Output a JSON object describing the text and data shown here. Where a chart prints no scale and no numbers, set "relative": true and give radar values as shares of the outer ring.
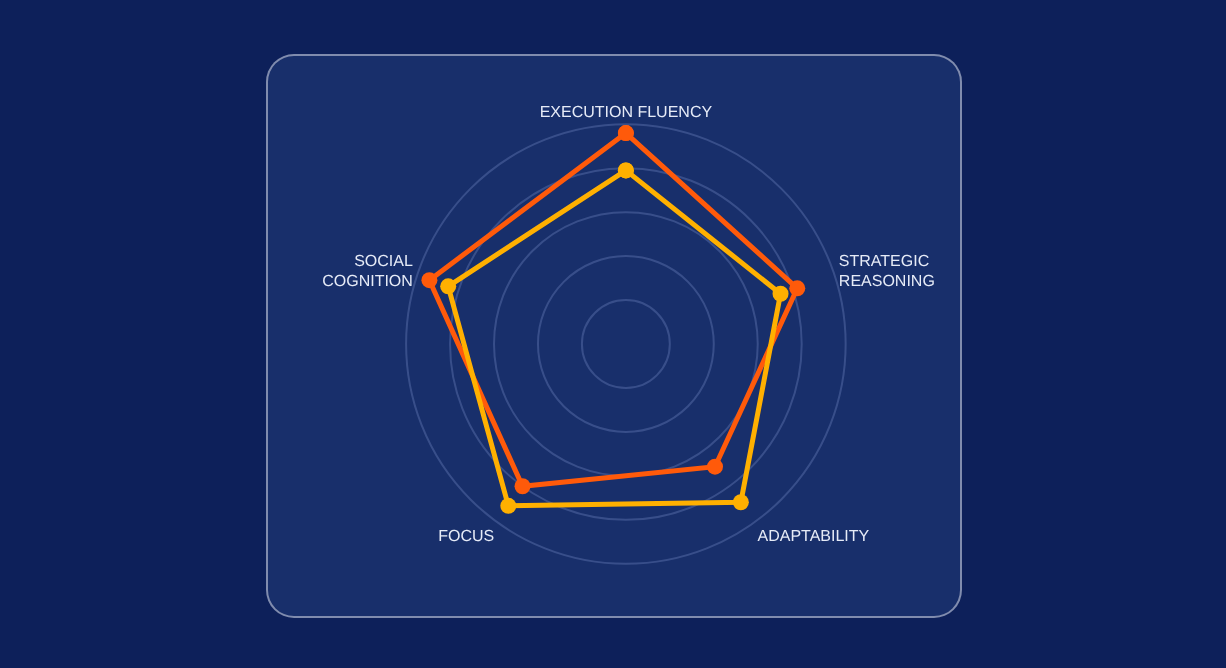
{
  "chart_data": {
    "type": "radar",
    "relative": true,
    "grid": true,
    "marker": "circle",
    "line_style": "solid",
    "categories": [
      "EXECUTION FLUENCY",
      "STRATEGIC\nREASONING",
      "ADAPTABILITY",
      "FOCUS",
      "SOCIAL\nCOGNITION"
    ],
    "series": [
      {
        "color": "#ff5a0a",
        "values": [
          0.96,
          0.82,
          0.69,
          0.8,
          0.94
        ]
      },
      {
        "color": "#ffb000",
        "values": [
          0.79,
          0.74,
          0.89,
          0.91,
          0.85
        ]
      }
    ]
  }
}
